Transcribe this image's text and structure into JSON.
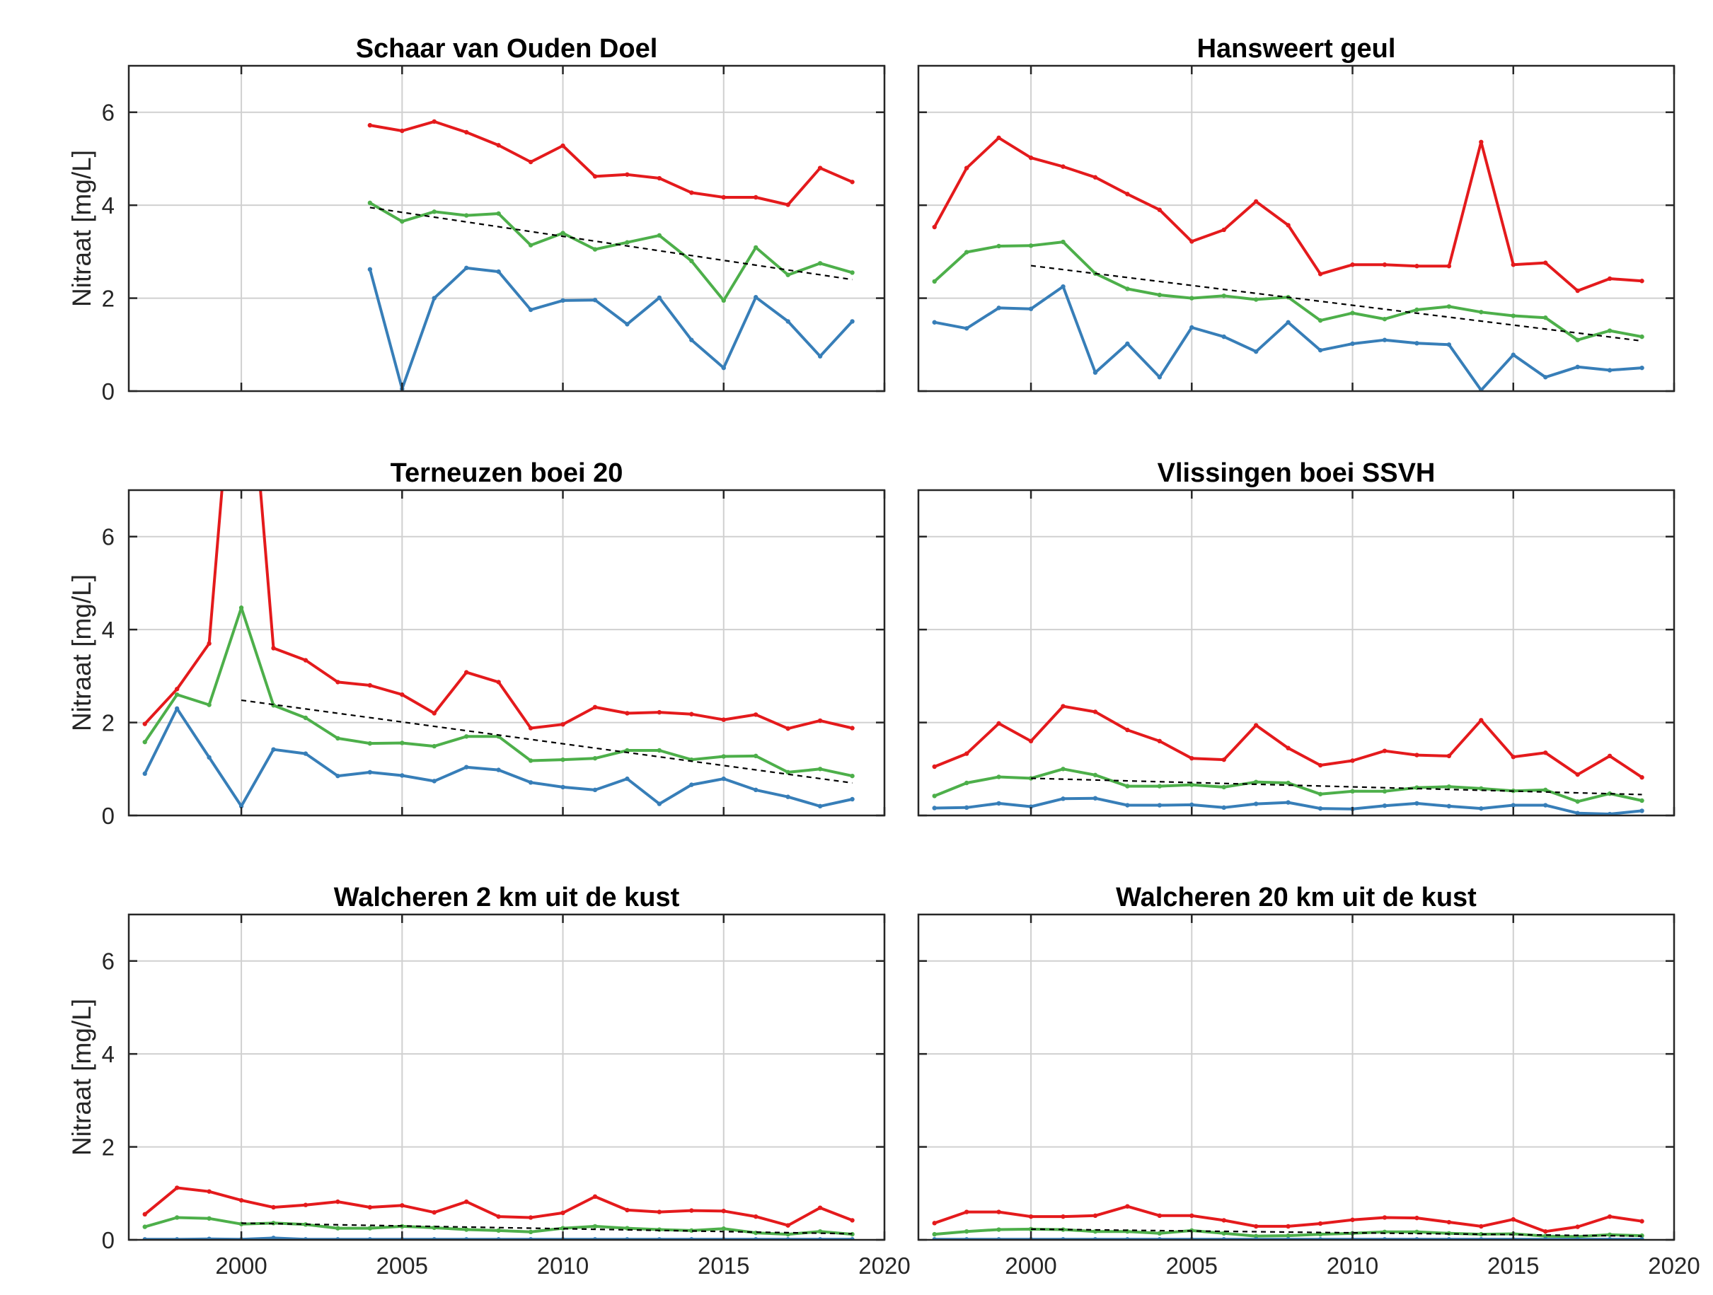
{
  "chart_data": [
    {
      "type": "line",
      "title": "Schaar van Ouden Doel",
      "xlabel": "",
      "ylabel": "Nitraat [mg/L]",
      "xlim": [
        1996.5,
        2020
      ],
      "ylim": [
        0,
        7
      ],
      "xticks": [
        2000,
        2005,
        2010,
        2015,
        2020
      ],
      "yticks": [
        0,
        2,
        4,
        6
      ],
      "grid": true,
      "show_xtick_labels": false,
      "show_ylabel": true,
      "show_ytick_labels": true,
      "x": [
        2004,
        2005,
        2006,
        2007,
        2008,
        2009,
        2010,
        2011,
        2012,
        2013,
        2014,
        2015,
        2016,
        2017,
        2018,
        2019
      ],
      "series": [
        {
          "color": "#e41a1c",
          "values": [
            5.72,
            5.6,
            5.8,
            5.57,
            5.29,
            4.93,
            5.28,
            4.62,
            4.66,
            4.58,
            4.27,
            4.17,
            4.17,
            4.01,
            4.8,
            4.5
          ]
        },
        {
          "color": "#4daf4a",
          "values": [
            4.05,
            3.65,
            3.86,
            3.78,
            3.82,
            3.14,
            3.4,
            3.05,
            3.2,
            3.35,
            2.8,
            1.95,
            3.09,
            2.5,
            2.75,
            2.55
          ]
        },
        {
          "color": "#377eb8",
          "values": [
            2.62,
            0.05,
            2.0,
            2.65,
            2.57,
            1.75,
            1.95,
            1.96,
            1.44,
            2.01,
            1.1,
            0.5,
            2.02,
            1.5,
            0.75,
            1.5
          ]
        }
      ],
      "trend": {
        "x": [
          2004,
          2019
        ],
        "y": [
          3.95,
          2.4
        ]
      }
    },
    {
      "type": "line",
      "title": "Hansweert geul",
      "xlabel": "",
      "ylabel": "",
      "xlim": [
        1996.5,
        2020
      ],
      "ylim": [
        0,
        7
      ],
      "xticks": [
        2000,
        2005,
        2010,
        2015,
        2020
      ],
      "yticks": [
        0,
        2,
        4,
        6
      ],
      "grid": true,
      "show_xtick_labels": false,
      "show_ylabel": false,
      "show_ytick_labels": false,
      "x": [
        1997,
        1998,
        1999,
        2000,
        2001,
        2002,
        2003,
        2004,
        2005,
        2006,
        2007,
        2008,
        2009,
        2010,
        2011,
        2012,
        2013,
        2014,
        2015,
        2016,
        2017,
        2018,
        2019
      ],
      "series": [
        {
          "color": "#e41a1c",
          "values": [
            3.53,
            4.8,
            5.45,
            5.02,
            4.83,
            4.6,
            4.24,
            3.9,
            3.22,
            3.47,
            4.08,
            3.57,
            2.52,
            2.72,
            2.72,
            2.69,
            2.69,
            5.36,
            2.72,
            2.76,
            2.16,
            2.42,
            2.37
          ]
        },
        {
          "color": "#4daf4a",
          "values": [
            2.36,
            2.99,
            3.12,
            3.13,
            3.21,
            2.53,
            2.2,
            2.07,
            2.0,
            2.05,
            1.97,
            2.02,
            1.52,
            1.68,
            1.55,
            1.75,
            1.82,
            1.7,
            1.62,
            1.58,
            1.1,
            1.3,
            1.17
          ]
        },
        {
          "color": "#377eb8",
          "values": [
            1.48,
            1.35,
            1.79,
            1.77,
            2.25,
            0.4,
            1.02,
            0.3,
            1.37,
            1.17,
            0.85,
            1.48,
            0.88,
            1.02,
            1.1,
            1.03,
            1.0,
            0.02,
            0.78,
            0.3,
            0.52,
            0.45,
            0.5
          ]
        }
      ],
      "trend": {
        "x": [
          2000,
          2019
        ],
        "y": [
          2.7,
          1.08
        ]
      }
    },
    {
      "type": "line",
      "title": "Terneuzen boei 20",
      "xlabel": "",
      "ylabel": "Nitraat [mg/L]",
      "xlim": [
        1996.5,
        2020
      ],
      "ylim": [
        0,
        7
      ],
      "xticks": [
        2000,
        2005,
        2010,
        2015,
        2020
      ],
      "yticks": [
        0,
        2,
        4,
        6
      ],
      "grid": true,
      "show_xtick_labels": false,
      "show_ylabel": true,
      "show_ytick_labels": true,
      "x": [
        1997,
        1998,
        1999,
        2000,
        2001,
        2002,
        2003,
        2004,
        2005,
        2006,
        2007,
        2008,
        2009,
        2010,
        2011,
        2012,
        2013,
        2014,
        2015,
        2016,
        2017,
        2018,
        2019
      ],
      "series": [
        {
          "color": "#e41a1c",
          "values": [
            1.97,
            2.72,
            3.7,
            12.0,
            3.6,
            3.34,
            2.87,
            2.8,
            2.6,
            2.2,
            3.08,
            2.87,
            1.88,
            1.96,
            2.33,
            2.2,
            2.22,
            2.18,
            2.06,
            2.17,
            1.87,
            2.04,
            1.88
          ]
        },
        {
          "color": "#4daf4a",
          "values": [
            1.58,
            2.6,
            2.38,
            4.47,
            2.37,
            2.1,
            1.66,
            1.55,
            1.56,
            1.49,
            1.7,
            1.7,
            1.18,
            1.2,
            1.23,
            1.4,
            1.4,
            1.2,
            1.27,
            1.28,
            0.93,
            1.0,
            0.85
          ]
        },
        {
          "color": "#377eb8",
          "values": [
            0.9,
            2.3,
            1.25,
            0.2,
            1.42,
            1.33,
            0.85,
            0.93,
            0.86,
            0.74,
            1.04,
            0.98,
            0.71,
            0.61,
            0.55,
            0.79,
            0.25,
            0.66,
            0.79,
            0.55,
            0.4,
            0.2,
            0.35
          ]
        }
      ],
      "trend": {
        "x": [
          2000,
          2019
        ],
        "y": [
          2.48,
          0.7
        ]
      }
    },
    {
      "type": "line",
      "title": "Vlissingen boei SSVH",
      "xlabel": "",
      "ylabel": "",
      "xlim": [
        1996.5,
        2020
      ],
      "ylim": [
        0,
        7
      ],
      "xticks": [
        2000,
        2005,
        2010,
        2015,
        2020
      ],
      "yticks": [
        0,
        2,
        4,
        6
      ],
      "grid": true,
      "show_xtick_labels": false,
      "show_ylabel": false,
      "show_ytick_labels": false,
      "x": [
        1997,
        1998,
        1999,
        2000,
        2001,
        2002,
        2003,
        2004,
        2005,
        2006,
        2007,
        2008,
        2009,
        2010,
        2011,
        2012,
        2013,
        2014,
        2015,
        2016,
        2017,
        2018,
        2019
      ],
      "series": [
        {
          "color": "#e41a1c",
          "values": [
            1.05,
            1.33,
            1.98,
            1.6,
            2.35,
            2.23,
            1.84,
            1.6,
            1.23,
            1.2,
            1.94,
            1.45,
            1.08,
            1.18,
            1.39,
            1.3,
            1.28,
            2.05,
            1.26,
            1.35,
            0.88,
            1.28,
            0.82
          ]
        },
        {
          "color": "#4daf4a",
          "values": [
            0.42,
            0.7,
            0.83,
            0.8,
            1.0,
            0.87,
            0.63,
            0.63,
            0.66,
            0.61,
            0.72,
            0.7,
            0.46,
            0.52,
            0.52,
            0.6,
            0.62,
            0.58,
            0.53,
            0.55,
            0.3,
            0.47,
            0.32
          ]
        },
        {
          "color": "#377eb8",
          "values": [
            0.16,
            0.17,
            0.26,
            0.19,
            0.36,
            0.37,
            0.22,
            0.22,
            0.23,
            0.17,
            0.25,
            0.28,
            0.15,
            0.14,
            0.21,
            0.26,
            0.2,
            0.15,
            0.22,
            0.22,
            0.05,
            0.03,
            0.1
          ]
        }
      ],
      "trend": {
        "x": [
          2000,
          2019
        ],
        "y": [
          0.8,
          0.45
        ]
      }
    },
    {
      "type": "line",
      "title": "Walcheren 2 km uit de kust",
      "xlabel": "",
      "ylabel": "Nitraat [mg/L]",
      "xlim": [
        1996.5,
        2020
      ],
      "ylim": [
        0,
        7
      ],
      "xticks": [
        2000,
        2005,
        2010,
        2015,
        2020
      ],
      "yticks": [
        0,
        2,
        4,
        6
      ],
      "grid": true,
      "show_xtick_labels": true,
      "show_ylabel": true,
      "show_ytick_labels": true,
      "x": [
        1997,
        1998,
        1999,
        2000,
        2001,
        2002,
        2003,
        2004,
        2005,
        2006,
        2007,
        2008,
        2009,
        2010,
        2011,
        2012,
        2013,
        2014,
        2015,
        2016,
        2017,
        2018,
        2019
      ],
      "series": [
        {
          "color": "#e41a1c",
          "values": [
            0.55,
            1.12,
            1.04,
            0.85,
            0.7,
            0.75,
            0.82,
            0.7,
            0.74,
            0.59,
            0.82,
            0.5,
            0.48,
            0.58,
            0.93,
            0.64,
            0.6,
            0.63,
            0.62,
            0.5,
            0.31,
            0.69,
            0.42
          ]
        },
        {
          "color": "#4daf4a",
          "values": [
            0.28,
            0.48,
            0.46,
            0.34,
            0.36,
            0.33,
            0.25,
            0.25,
            0.29,
            0.26,
            0.22,
            0.2,
            0.17,
            0.25,
            0.29,
            0.25,
            0.22,
            0.2,
            0.24,
            0.15,
            0.12,
            0.18,
            0.12
          ]
        },
        {
          "color": "#377eb8",
          "values": [
            0.01,
            0.01,
            0.02,
            0.01,
            0.04,
            0.01,
            0.01,
            0.01,
            0.01,
            0.01,
            0.01,
            0.01,
            0.01,
            0.01,
            0.01,
            0.01,
            0.01,
            0.01,
            0.01,
            0.01,
            0.01,
            0.01,
            0.01
          ]
        }
      ],
      "trend": {
        "x": [
          2000,
          2019
        ],
        "y": [
          0.36,
          0.13
        ]
      }
    },
    {
      "type": "line",
      "title": "Walcheren 20 km uit de kust",
      "xlabel": "",
      "ylabel": "",
      "xlim": [
        1996.5,
        2020
      ],
      "ylim": [
        0,
        7
      ],
      "xticks": [
        2000,
        2005,
        2010,
        2015,
        2020
      ],
      "yticks": [
        0,
        2,
        4,
        6
      ],
      "grid": true,
      "show_xtick_labels": true,
      "show_ylabel": false,
      "show_ytick_labels": false,
      "x": [
        1997,
        1998,
        1999,
        2000,
        2001,
        2002,
        2003,
        2004,
        2005,
        2006,
        2007,
        2008,
        2009,
        2010,
        2011,
        2012,
        2013,
        2014,
        2015,
        2016,
        2017,
        2018,
        2019
      ],
      "series": [
        {
          "color": "#e41a1c",
          "values": [
            0.36,
            0.6,
            0.6,
            0.5,
            0.5,
            0.52,
            0.72,
            0.52,
            0.52,
            0.42,
            0.29,
            0.29,
            0.35,
            0.43,
            0.48,
            0.47,
            0.38,
            0.29,
            0.44,
            0.18,
            0.28,
            0.5,
            0.4
          ]
        },
        {
          "color": "#4daf4a",
          "values": [
            0.12,
            0.18,
            0.22,
            0.23,
            0.22,
            0.18,
            0.18,
            0.14,
            0.2,
            0.14,
            0.08,
            0.09,
            0.12,
            0.14,
            0.17,
            0.17,
            0.14,
            0.12,
            0.13,
            0.08,
            0.07,
            0.11,
            0.09
          ]
        },
        {
          "color": "#377eb8",
          "values": [
            0.01,
            0.01,
            0.01,
            0.01,
            0.01,
            0.01,
            0.01,
            0.01,
            0.01,
            0.01,
            0.01,
            0.01,
            0.01,
            0.01,
            0.01,
            0.01,
            0.01,
            0.01,
            0.01,
            0.01,
            0.01,
            0.01,
            0.01
          ]
        }
      ],
      "trend": {
        "x": [
          2000,
          2019
        ],
        "y": [
          0.23,
          0.08
        ]
      }
    }
  ]
}
